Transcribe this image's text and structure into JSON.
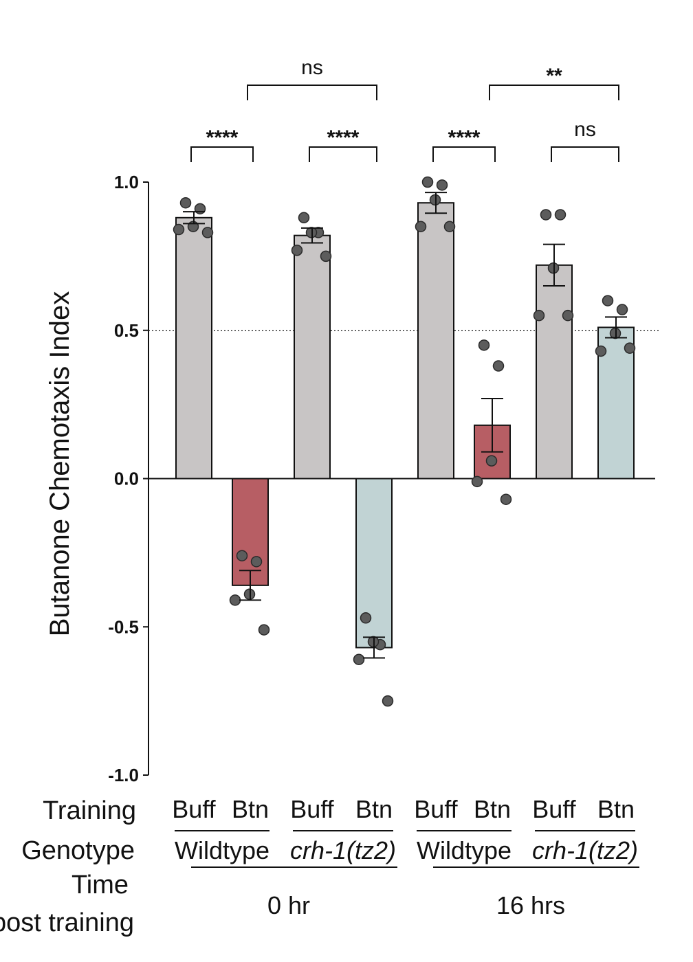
{
  "chart_data": {
    "type": "bar",
    "ylabel": "Butanone Chemotaxis Index",
    "ylim": [
      -1.0,
      1.0
    ],
    "yticks": [
      "1.0",
      "0.5",
      "0.0",
      "-0.5",
      "-1.0"
    ],
    "ytick_values": [
      1.0,
      0.5,
      0.0,
      -0.5,
      -1.0
    ],
    "reference_line": 0.5,
    "grid": false,
    "colors": {
      "buff": "#c8c5c5",
      "btn_wildtype": "#b75e64",
      "btn_crh1": "#c1d3d4",
      "point": "#5c5c5c"
    },
    "bars": [
      {
        "training": "Buff",
        "genotype": "Wildtype",
        "time": "0 hr",
        "mean": 0.88,
        "sem": 0.02,
        "color_key": "buff",
        "points": [
          0.93,
          0.91,
          0.85,
          0.84,
          0.83
        ]
      },
      {
        "training": "Btn",
        "genotype": "Wildtype",
        "time": "0 hr",
        "mean": -0.36,
        "sem": 0.05,
        "color_key": "btn_wildtype",
        "points": [
          -0.26,
          -0.28,
          -0.39,
          -0.41,
          -0.51
        ]
      },
      {
        "training": "Buff",
        "genotype": "crh-1(tz2)",
        "time": "0 hr",
        "mean": 0.82,
        "sem": 0.025,
        "color_key": "buff",
        "points": [
          0.88,
          0.83,
          0.83,
          0.77,
          0.75
        ]
      },
      {
        "training": "Btn",
        "genotype": "crh-1(tz2)",
        "time": "0 hr",
        "mean": -0.57,
        "sem": 0.035,
        "color_key": "btn_crh1",
        "points": [
          -0.47,
          -0.56,
          -0.55,
          -0.61,
          -0.75
        ]
      },
      {
        "training": "Buff",
        "genotype": "Wildtype",
        "time": "16 hrs",
        "mean": 0.93,
        "sem": 0.035,
        "color_key": "buff",
        "points": [
          1.0,
          0.99,
          0.94,
          0.85,
          0.85
        ]
      },
      {
        "training": "Btn",
        "genotype": "Wildtype",
        "time": "16 hrs",
        "mean": 0.18,
        "sem": 0.09,
        "color_key": "btn_wildtype",
        "points": [
          0.45,
          0.38,
          0.06,
          -0.01,
          -0.07
        ]
      },
      {
        "training": "Buff",
        "genotype": "crh-1(tz2)",
        "time": "16 hrs",
        "mean": 0.72,
        "sem": 0.07,
        "color_key": "buff",
        "points": [
          0.89,
          0.89,
          0.71,
          0.55,
          0.55
        ]
      },
      {
        "training": "Btn",
        "genotype": "crh-1(tz2)",
        "time": "16 hrs",
        "mean": 0.51,
        "sem": 0.035,
        "color_key": "btn_crh1",
        "points": [
          0.6,
          0.57,
          0.49,
          0.43,
          0.44
        ]
      }
    ],
    "comparisons": [
      {
        "from": 0,
        "to": 1,
        "label": "****"
      },
      {
        "from": 2,
        "to": 3,
        "label": "****"
      },
      {
        "from": 4,
        "to": 5,
        "label": "****"
      },
      {
        "from": 6,
        "to": 7,
        "label": "ns"
      },
      {
        "from": 1,
        "to": 3,
        "label": "ns",
        "level": 2
      },
      {
        "from": 5,
        "to": 7,
        "label": "**",
        "level": 2
      }
    ],
    "row_labels": {
      "training": "Training",
      "genotype": "Genotype",
      "time": "Time",
      "time2": "post training"
    },
    "genotype_groups": [
      {
        "label": "Wildtype",
        "from": 0,
        "to": 1,
        "italic": false
      },
      {
        "label": "crh-1(tz2)",
        "from": 2,
        "to": 3,
        "italic": true
      },
      {
        "label": "Wildtype",
        "from": 4,
        "to": 5,
        "italic": false
      },
      {
        "label": "crh-1(tz2)",
        "from": 6,
        "to": 7,
        "italic": true
      }
    ],
    "time_groups": [
      {
        "label": "0 hr",
        "from": 0,
        "to": 3
      },
      {
        "label": "16 hrs",
        "from": 4,
        "to": 7
      }
    ]
  }
}
